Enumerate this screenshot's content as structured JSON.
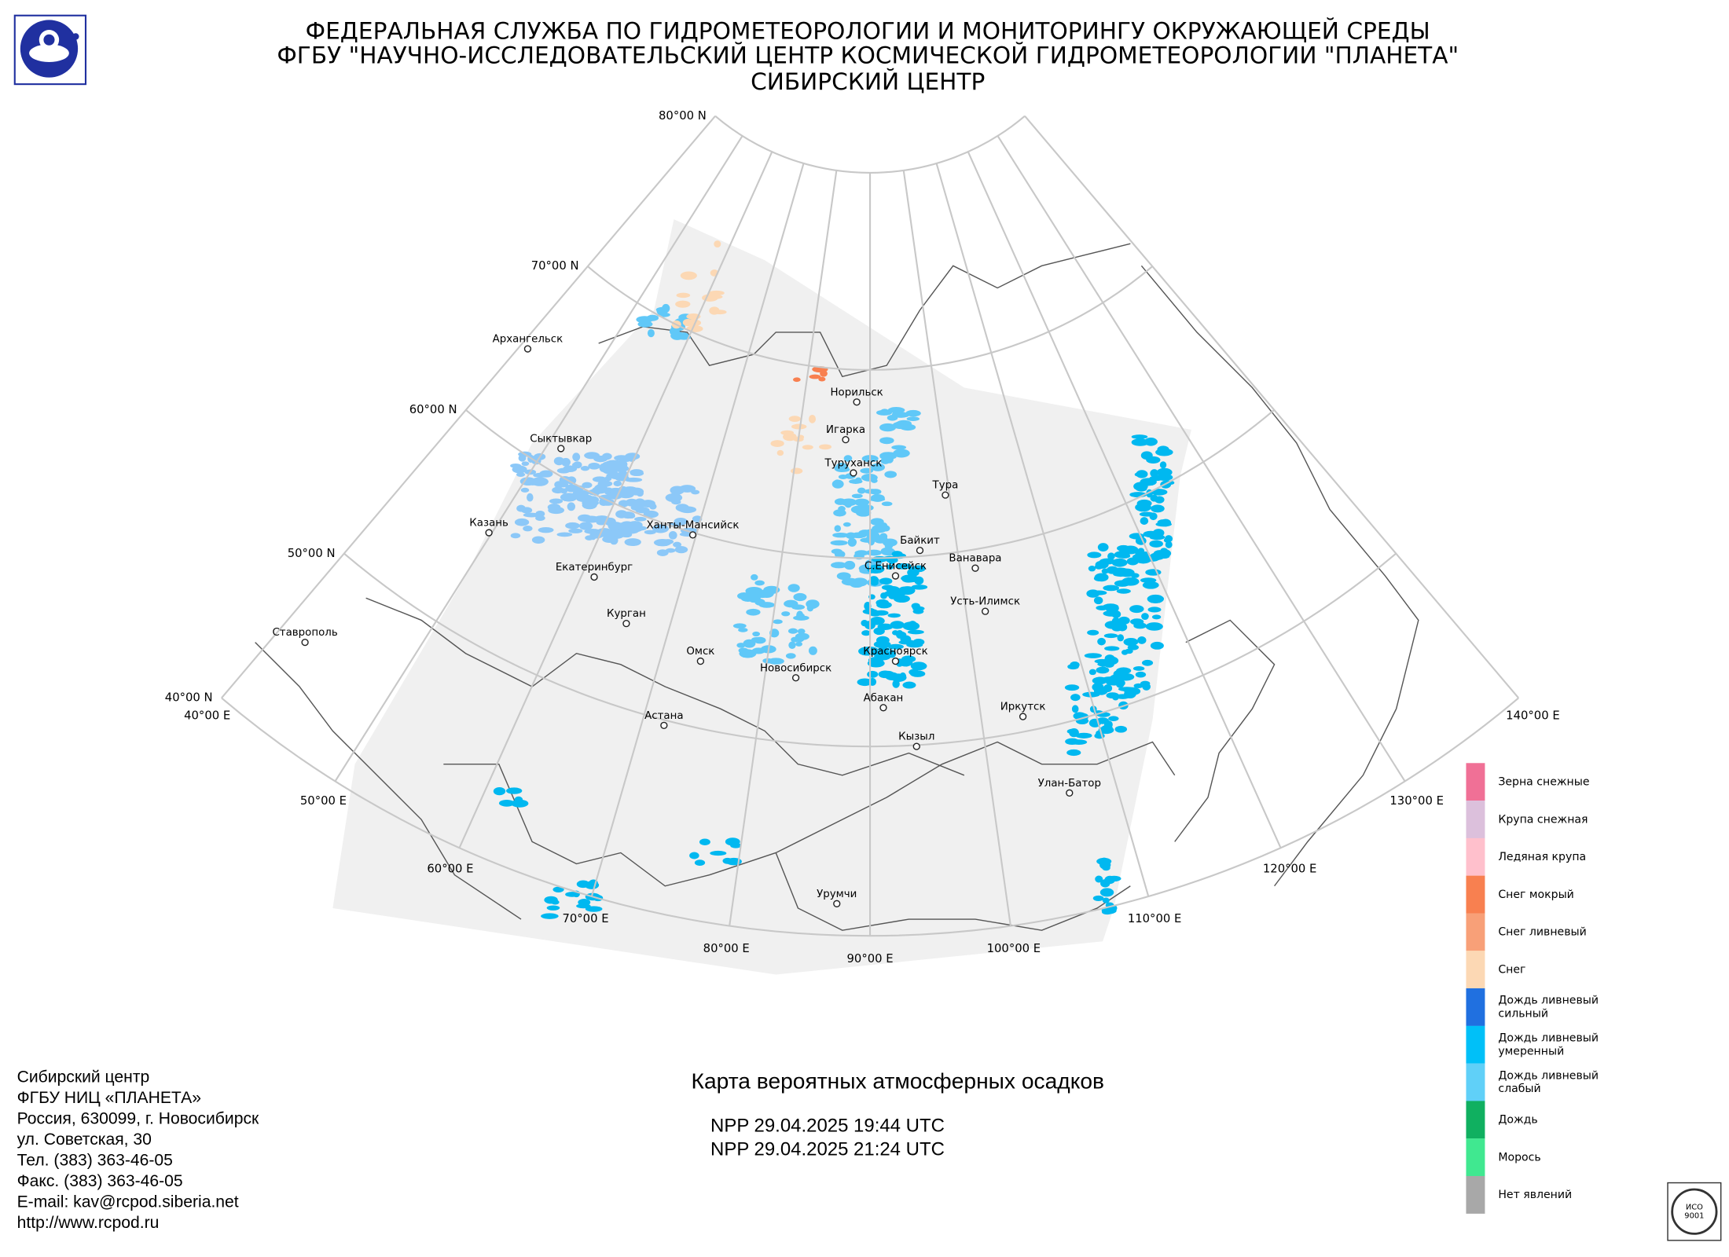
{
  "header": {
    "lines": [
      "ФЕДЕРАЛЬНАЯ СЛУЖБА ПО ГИДРОМЕТЕОРОЛОГИИ И МОНИТОРИНГУ ОКРУЖАЮЩЕЙ СРЕДЫ",
      "ФГБУ \"НАУЧНО-ИССЛЕДОВАТЕЛЬСКИЙ ЦЕНТР КОСМИЧЕСКОЙ ГИДРОМЕТЕОРОЛОГИИ \"ПЛАНЕТА\"",
      "СИБИРСКИЙ ЦЕНТР"
    ]
  },
  "map": {
    "parallels": [
      "80°00 N",
      "70°00 N",
      "60°00 N",
      "50°00 N",
      "40°00 N"
    ],
    "meridians": [
      "40°00 E",
      "50°00 E",
      "60°00 E",
      "70°00 E",
      "80°00 E",
      "90°00 E",
      "100°00 E",
      "110°00 E",
      "120°00 E",
      "130°00 E",
      "140°00 E"
    ],
    "cities": [
      "Архангельск",
      "Норильск",
      "Игарка",
      "Туруханск",
      "Тура",
      "Сыктывкар",
      "Казань",
      "Ханты-Мансийск",
      "Байкит",
      "Ванавара",
      "Екатеринбург",
      "С.Енисейск",
      "Усть-Илимск",
      "Курган",
      "Ставрополь",
      "Омск",
      "Красноярск",
      "Новосибирск",
      "Абакан",
      "Иркутск",
      "Астана",
      "Кызыл",
      "Улан-Батор",
      "Урумчи"
    ]
  },
  "legend": {
    "items": [
      {
        "label": [
          "Зерна снежные"
        ],
        "color": "#f07096"
      },
      {
        "label": [
          "Крупа снежная"
        ],
        "color": "#dcc0dc"
      },
      {
        "label": [
          "Ледяная крупа"
        ],
        "color": "#ffc0cc"
      },
      {
        "label": [
          "Снег мокрый"
        ],
        "color": "#f88050"
      },
      {
        "label": [
          "Снег ливневый"
        ],
        "color": "#f8a078"
      },
      {
        "label": [
          "Снег"
        ],
        "color": "#fcd8b4"
      },
      {
        "label": [
          "Дождь ливневый",
          "сильный"
        ],
        "color": "#2070e0"
      },
      {
        "label": [
          "Дождь ливневый",
          "умеренный"
        ],
        "color": "#00c0f8"
      },
      {
        "label": [
          "Дождь ливневый",
          "слабый"
        ],
        "color": "#60d0f8"
      },
      {
        "label": [
          "Дождь"
        ],
        "color": "#10b060"
      },
      {
        "label": [
          "Морось"
        ],
        "color": "#40e890"
      },
      {
        "label": [
          "Нет явлений"
        ],
        "color": "#a8a8a8"
      }
    ]
  },
  "footer": {
    "address": [
      "Сибирский центр",
      "ФГБУ НИЦ «ПЛАНЕТА»",
      "Россия, 630099, г. Новосибирск",
      "ул. Советская, 30",
      "Тел. (383) 363-46-05",
      "Факс. (383) 363-46-05",
      "E-mail: kav@rcpod.siberia.net",
      "http://www.rcpod.ru"
    ],
    "title": "Карта вероятных атмосферных осадков",
    "passes": [
      "NPP 29.04.2025  19:44 UTC",
      "NPP 29.04.2025  21:24 UTC"
    ]
  }
}
